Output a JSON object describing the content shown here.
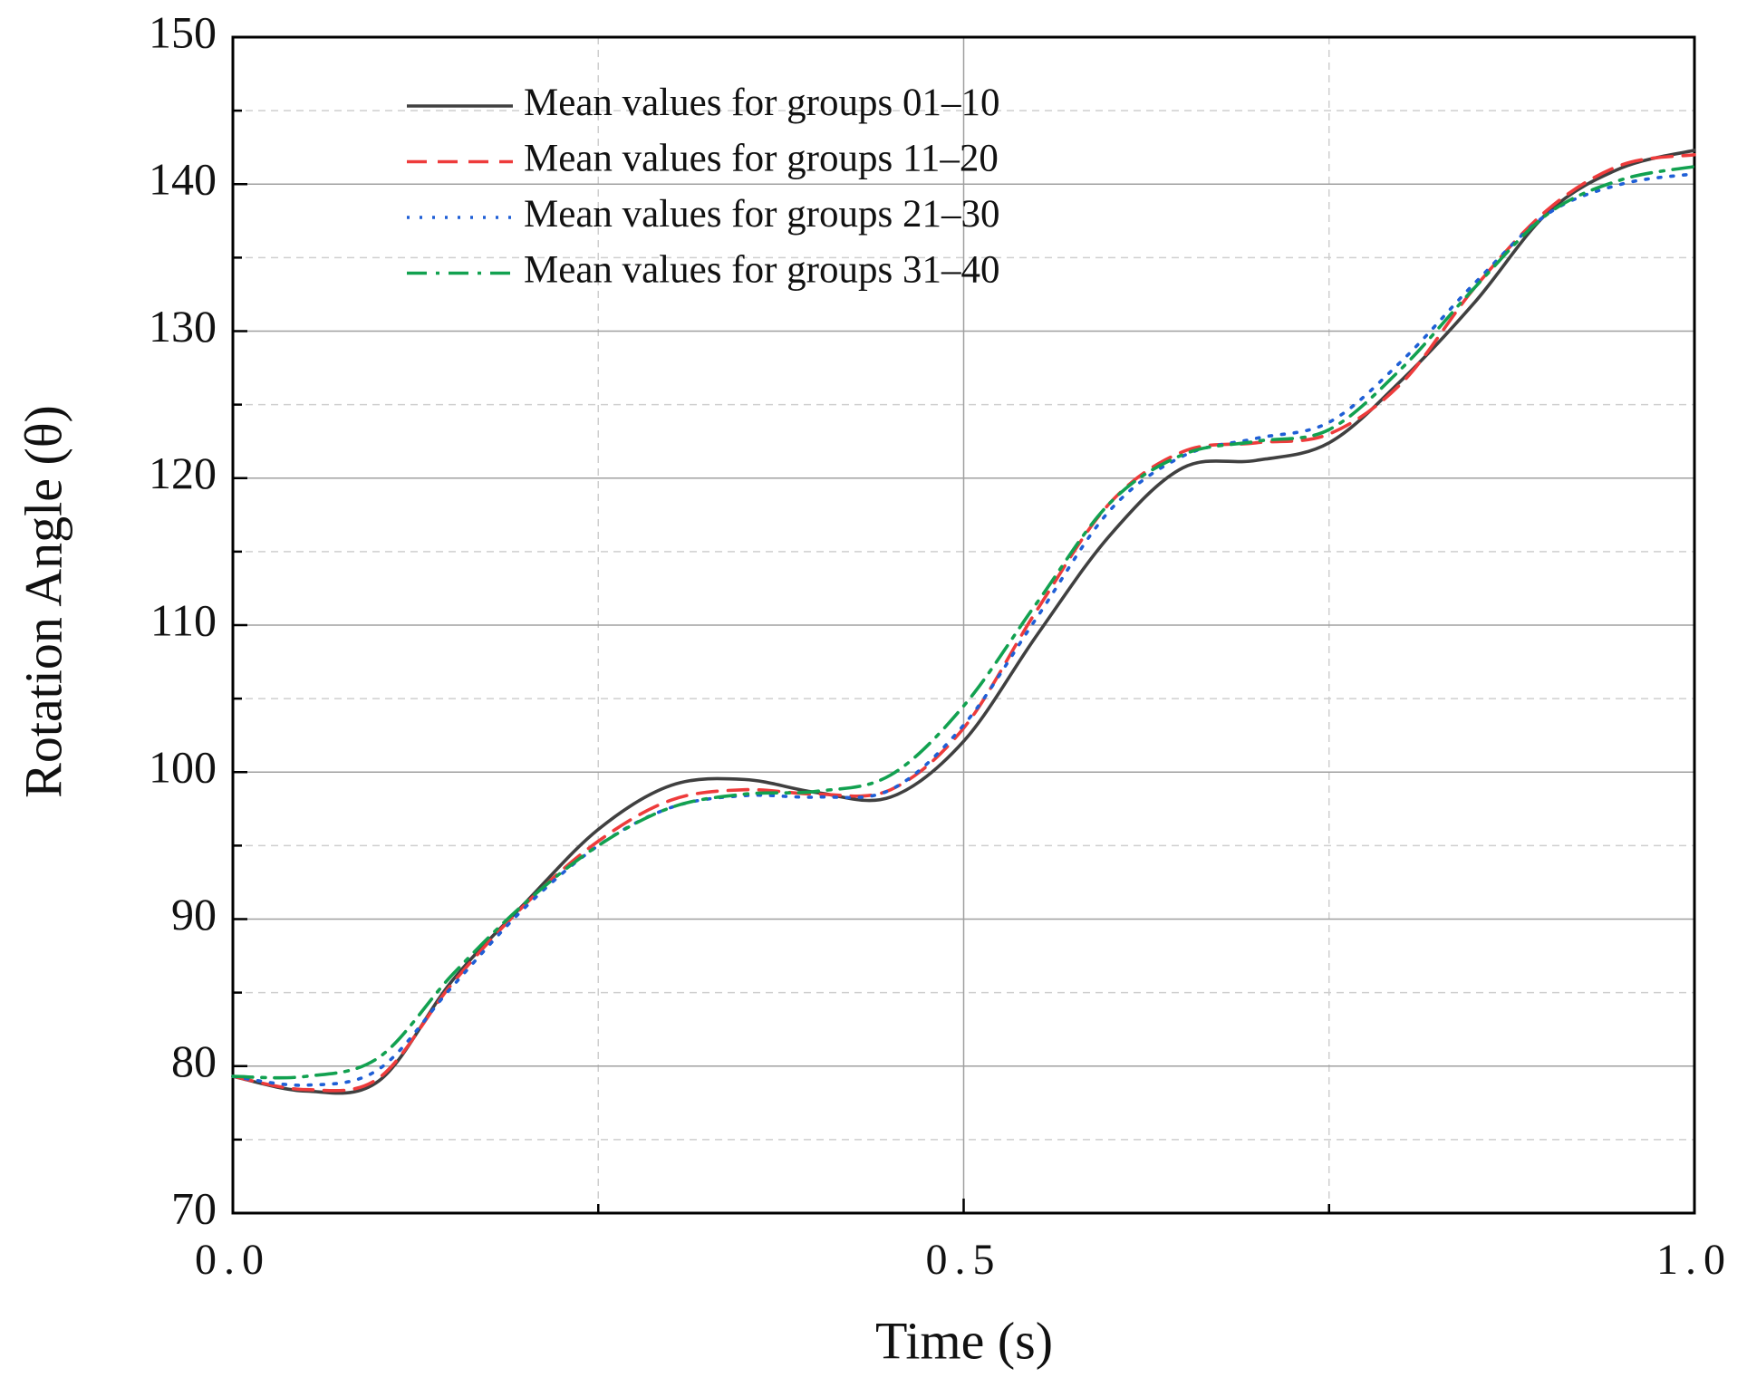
{
  "chart_data": {
    "type": "line",
    "xlabel": "Time (s)",
    "ylabel": "Rotation Angle (θ)",
    "x": [
      0,
      0.05,
      0.1,
      0.15,
      0.2,
      0.25,
      0.3,
      0.35,
      0.4,
      0.45,
      0.5,
      0.55,
      0.6,
      0.65,
      0.7,
      0.75,
      0.8,
      0.85,
      0.9,
      0.95,
      1.0
    ],
    "series": [
      {
        "name": "Mean values for groups 01–10",
        "color": "#404040",
        "dash": "solid",
        "values": [
          79.3,
          78.3,
          79.0,
          85.8,
          91.1,
          96.1,
          99.1,
          99.5,
          98.6,
          98.3,
          102.1,
          109.3,
          116.1,
          120.7,
          121.2,
          122.4,
          126.7,
          132.0,
          138.1,
          141.1,
          142.3
        ]
      },
      {
        "name": "Mean values for groups 11–20",
        "color": "#ee3b3b",
        "dash": "dashed",
        "values": [
          79.3,
          78.4,
          79.2,
          85.6,
          91.0,
          95.3,
          98.1,
          98.8,
          98.5,
          98.8,
          103.0,
          111.0,
          118.3,
          121.8,
          122.4,
          123.0,
          126.5,
          133.0,
          138.3,
          141.3,
          142.0
        ]
      },
      {
        "name": "Mean values for groups 21–30",
        "color": "#1f5fd6",
        "dash": "dotted",
        "values": [
          79.3,
          78.7,
          79.8,
          85.4,
          90.8,
          95.0,
          97.6,
          98.4,
          98.3,
          98.8,
          103.2,
          110.5,
          117.8,
          121.5,
          122.7,
          123.8,
          128.0,
          133.3,
          138.0,
          140.0,
          140.7
        ]
      },
      {
        "name": "Mean values for groups 31–40",
        "color": "#12a150",
        "dash": "dashdot",
        "values": [
          79.3,
          79.3,
          80.6,
          86.2,
          91.1,
          95.0,
          97.6,
          98.5,
          98.7,
          99.8,
          104.5,
          111.5,
          118.3,
          121.6,
          122.5,
          123.3,
          127.5,
          133.0,
          138.0,
          140.3,
          141.2
        ]
      }
    ],
    "xlim": [
      0,
      1.0
    ],
    "ylim": [
      70,
      150
    ],
    "xticks": [
      {
        "value": 0,
        "label": "0.0"
      },
      0.5,
      {
        "value": 1.0,
        "label": "1.0"
      }
    ],
    "xticks_minor": [
      0.25,
      0.75
    ],
    "yticks": [
      70,
      80,
      90,
      100,
      110,
      120,
      130,
      140,
      150
    ],
    "yticks_minor": [
      75,
      85,
      95,
      105,
      115,
      125,
      135,
      145
    ],
    "grid": true,
    "legend": "upper left"
  }
}
